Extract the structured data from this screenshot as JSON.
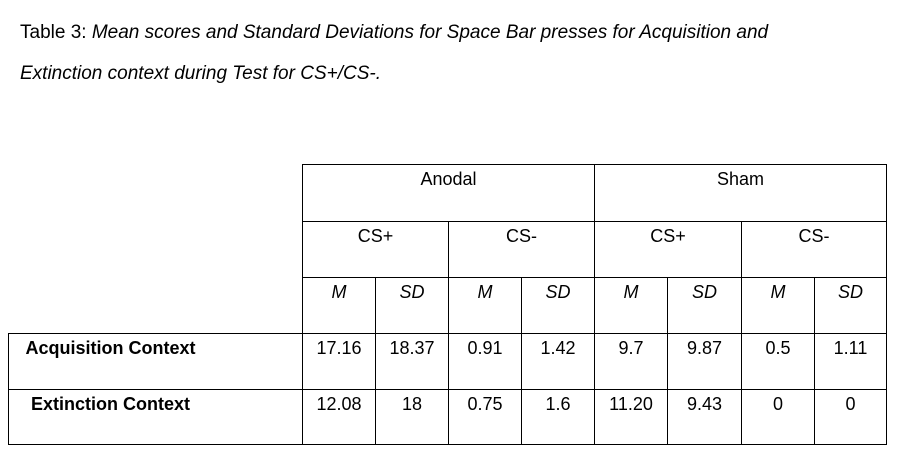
{
  "caption": {
    "prefix": "Table 3: ",
    "line1_italic": "Mean scores and Standard Deviations for Space Bar presses for Acquisition and",
    "line2_italic": "Extinction context during Test for CS+/CS-."
  },
  "table": {
    "groups": [
      "Anodal",
      "Sham"
    ],
    "stimuli": [
      "CS+",
      "CS-",
      "CS+",
      "CS-"
    ],
    "stats": [
      "M",
      "SD",
      "M",
      "SD",
      "M",
      "SD",
      "M",
      "SD"
    ],
    "rows": [
      {
        "label": "Acquisition Context",
        "values": [
          "17.16",
          "18.37",
          "0.91",
          "1.42",
          "9.7",
          "9.87",
          "0.5",
          "1.11"
        ]
      },
      {
        "label": "Extinction Context",
        "values": [
          "12.08",
          "18",
          "0.75",
          "1.6",
          "11.20",
          "9.43",
          "0",
          "0"
        ]
      }
    ]
  }
}
